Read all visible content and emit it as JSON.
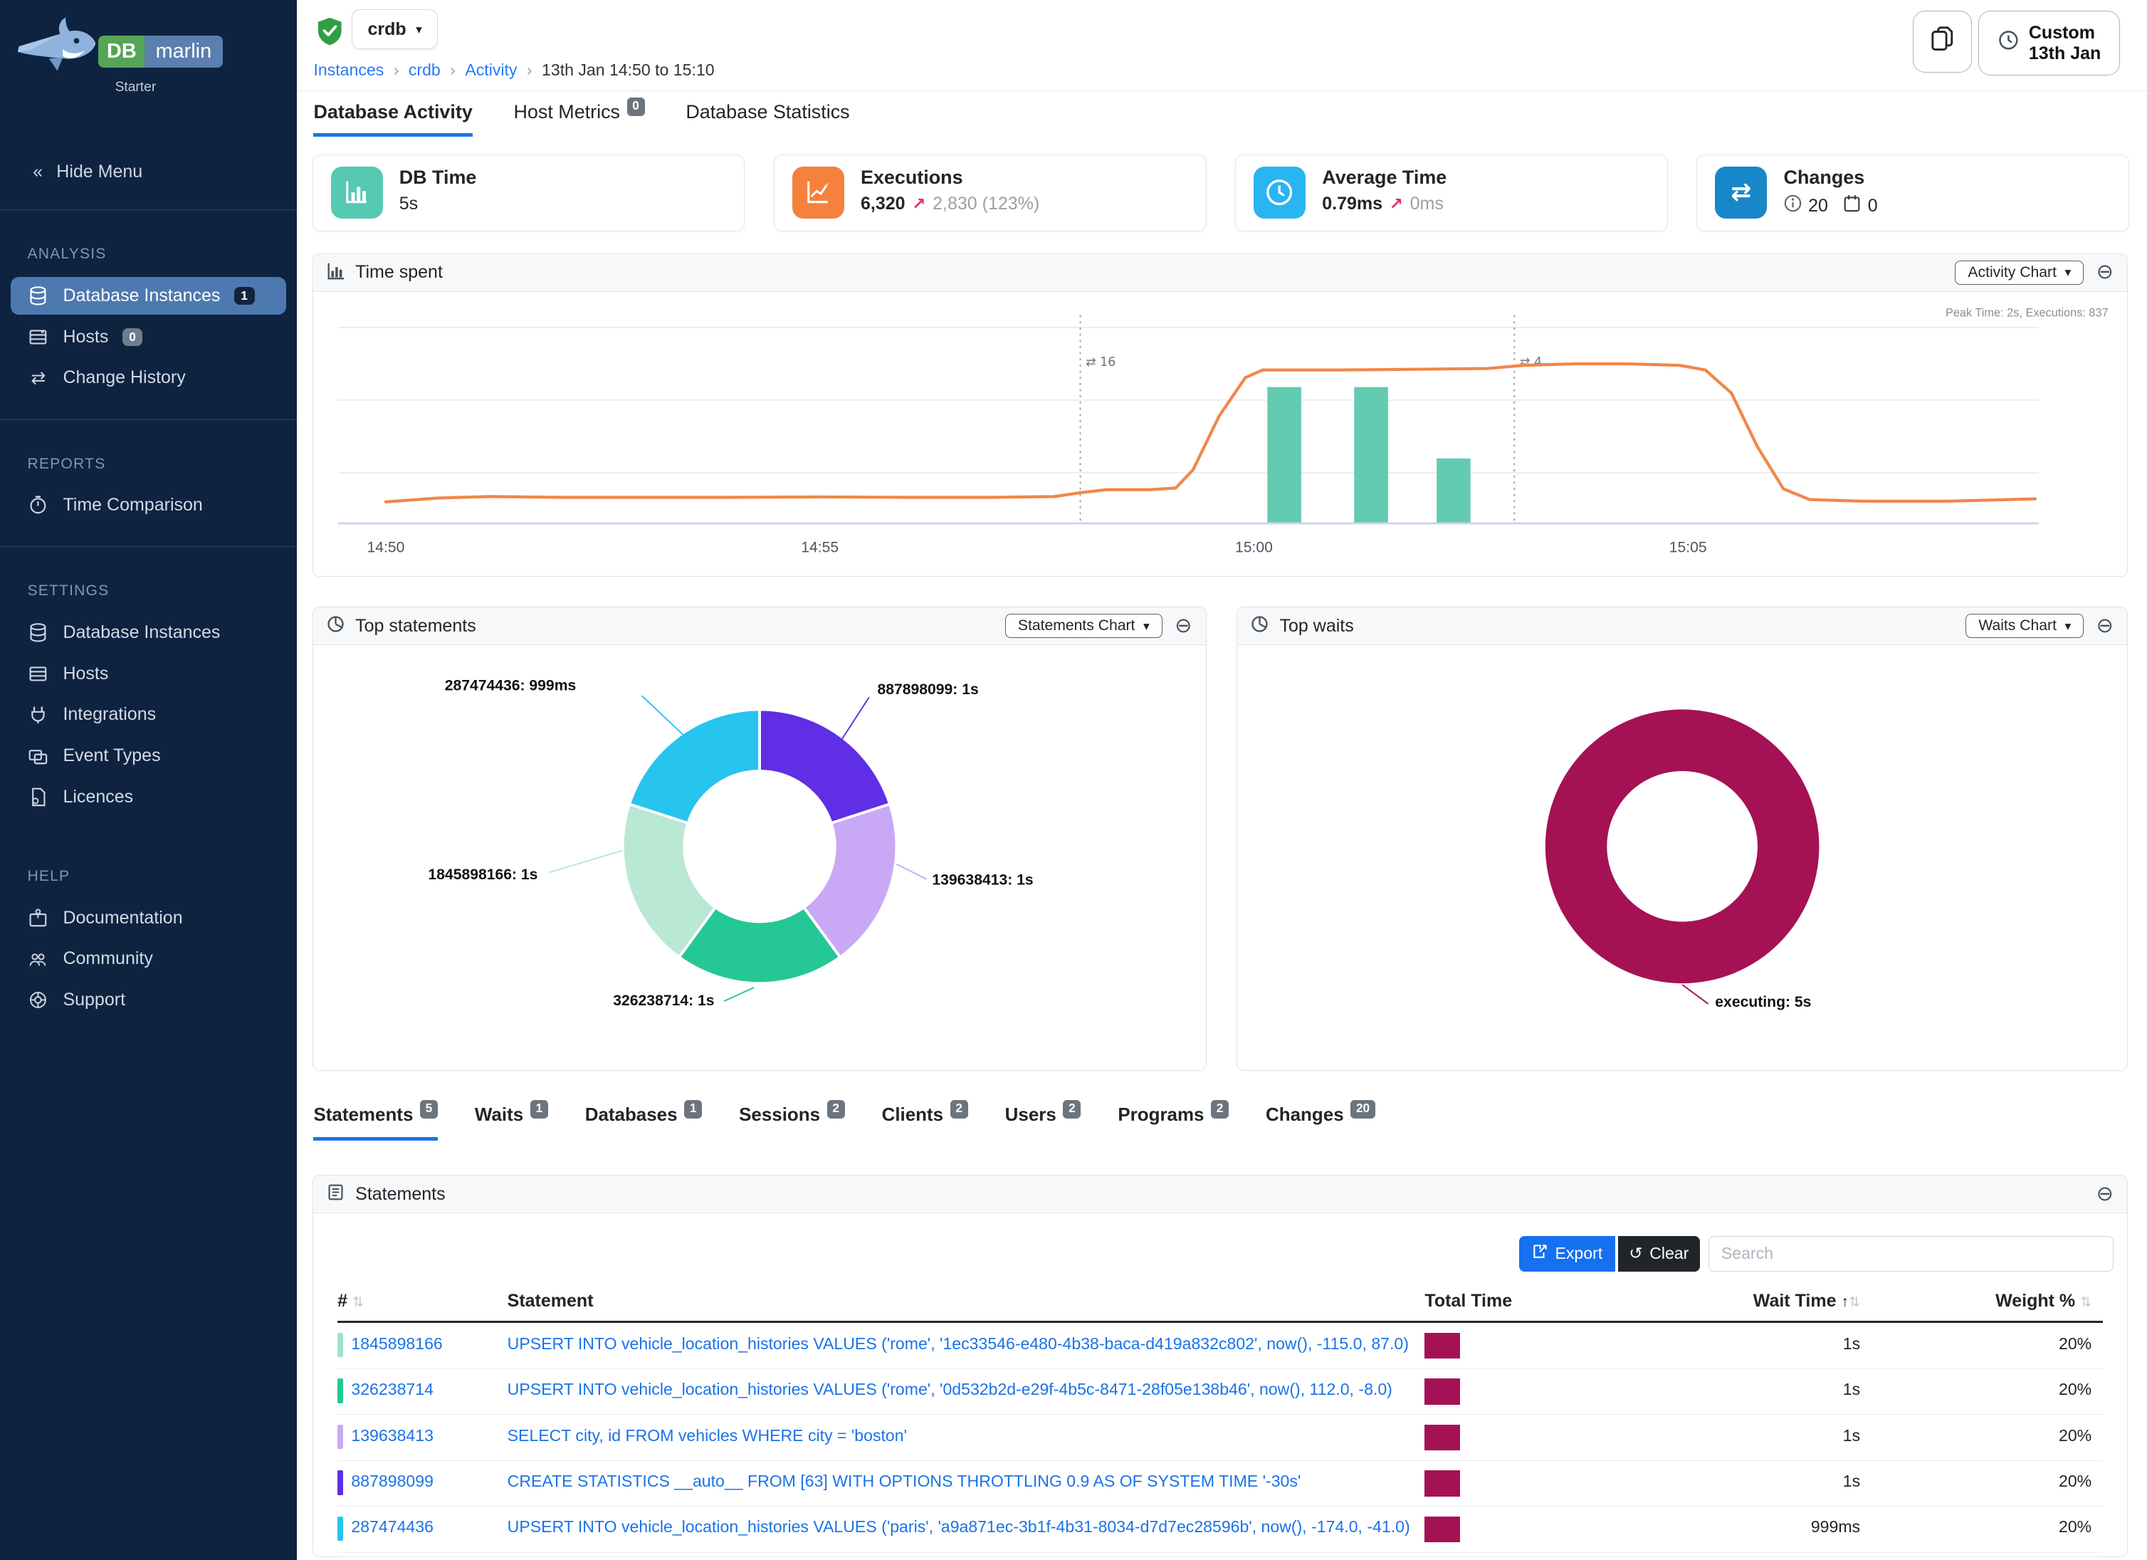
{
  "app": {
    "brand": {
      "db": "DB",
      "marlin": "marlin",
      "plan": "Starter"
    }
  },
  "sidebar": {
    "hide_menu": "Hide Menu",
    "sections": [
      {
        "title": "ANALYSIS",
        "items": [
          {
            "label": "Database Instances",
            "badge": "1"
          },
          {
            "label": "Hosts",
            "badge": "0"
          },
          {
            "label": "Change History"
          }
        ]
      },
      {
        "title": "REPORTS",
        "items": [
          {
            "label": "Time Comparison"
          }
        ]
      },
      {
        "title": "SETTINGS",
        "items": [
          {
            "label": "Database Instances"
          },
          {
            "label": "Hosts"
          },
          {
            "label": "Integrations"
          },
          {
            "label": "Event Types"
          },
          {
            "label": "Licences"
          }
        ]
      },
      {
        "title": "HELP",
        "items": [
          {
            "label": "Documentation"
          },
          {
            "label": "Community"
          },
          {
            "label": "Support"
          }
        ]
      }
    ]
  },
  "header": {
    "instance": "crdb",
    "breadcrumb": {
      "b0": "Instances",
      "b1": "crdb",
      "b2": "Activity",
      "b3": "13th Jan 14:50 to 15:10"
    },
    "time_button": {
      "line1": "Custom",
      "line2": "13th Jan"
    }
  },
  "page_tabs": [
    {
      "label": "Database Activity",
      "active": true
    },
    {
      "label": "Host Metrics",
      "badge": "0"
    },
    {
      "label": "Database Statistics"
    }
  ],
  "kpis": [
    {
      "title": "DB Time",
      "value": "5s",
      "color": "#55c9b4"
    },
    {
      "title": "Executions",
      "value": "6,320",
      "trend": "2,830 (123%)",
      "color": "#f5813c"
    },
    {
      "title": "Average Time",
      "value": "0.79ms",
      "trend": "0ms",
      "color": "#29b5f2"
    },
    {
      "title": "Changes",
      "info_count": "20",
      "event_count": "0",
      "color": "#1887c9"
    }
  ],
  "panels": {
    "time_spent": {
      "title": "Time spent",
      "button": "Activity Chart"
    },
    "top_statements": {
      "title": "Top statements",
      "button": "Statements Chart"
    },
    "top_waits": {
      "title": "Top waits",
      "button": "Waits Chart"
    },
    "statements": {
      "title": "Statements",
      "export": "Export",
      "clear": "Clear",
      "search_placeholder": "Search"
    }
  },
  "detail_tabs": [
    {
      "label": "Statements",
      "badge": "5",
      "active": true
    },
    {
      "label": "Waits",
      "badge": "1"
    },
    {
      "label": "Databases",
      "badge": "1"
    },
    {
      "label": "Sessions",
      "badge": "2"
    },
    {
      "label": "Clients",
      "badge": "2"
    },
    {
      "label": "Users",
      "badge": "2"
    },
    {
      "label": "Programs",
      "badge": "2"
    },
    {
      "label": "Changes",
      "badge": "20"
    }
  ],
  "table": {
    "columns": {
      "c0": "#",
      "c1": "Statement",
      "c2": "Total Time",
      "c3": "Wait Time",
      "c4": "Weight %"
    },
    "rows": [
      {
        "id": "1845898166",
        "color": "#9fe3c7",
        "statement": "UPSERT INTO vehicle_location_histories VALUES ('rome', '1ec33546-e480-4b38-baca-d419a832c802', now(), -115.0, 87.0)",
        "wait": "1s",
        "weight": "20%"
      },
      {
        "id": "326238714",
        "color": "#26c796",
        "statement": "UPSERT INTO vehicle_location_histories VALUES ('rome', '0d532b2d-e29f-4b5c-8471-28f05e138b46', now(), 112.0, -8.0)",
        "wait": "1s",
        "weight": "20%"
      },
      {
        "id": "139638413",
        "color": "#c9a9f5",
        "statement": "SELECT city, id FROM vehicles WHERE city = 'boston'",
        "wait": "1s",
        "weight": "20%"
      },
      {
        "id": "887898099",
        "color": "#5f2ee5",
        "statement": "CREATE STATISTICS __auto__ FROM [63] WITH OPTIONS THROTTLING 0.9 AS OF SYSTEM TIME '-30s'",
        "wait": "1s",
        "weight": "20%"
      },
      {
        "id": "287474436",
        "color": "#27c4ee",
        "statement": "UPSERT INTO vehicle_location_histories VALUES ('paris', 'a9a871ec-3b1f-4b31-8034-d7d7ec28596b', now(), -174.0, -41.0)",
        "wait": "999ms",
        "weight": "20%"
      }
    ]
  },
  "chart_data": [
    {
      "id": "time_spent",
      "type": "line+bar",
      "title": "Time spent",
      "note": "Peak Time: 2s, Executions: 837",
      "x_ticks": [
        {
          "minute": 0,
          "label": "14:50"
        },
        {
          "minute": 5,
          "label": "14:55"
        },
        {
          "minute": 10,
          "label": "15:00"
        },
        {
          "minute": 15,
          "label": "15:05"
        }
      ],
      "x_range_minutes": [
        0,
        19
      ],
      "y_max_seconds": 2.82,
      "line": {
        "name": "DB Time",
        "unit": "s",
        "color": "#f0874a",
        "points": [
          [
            0,
            0.28
          ],
          [
            0.6,
            0.33
          ],
          [
            1.2,
            0.35
          ],
          [
            2,
            0.34
          ],
          [
            3,
            0.34
          ],
          [
            4,
            0.34
          ],
          [
            5,
            0.345
          ],
          [
            6,
            0.34
          ],
          [
            7,
            0.34
          ],
          [
            7.7,
            0.35
          ],
          [
            8,
            0.4
          ],
          [
            8.3,
            0.44
          ],
          [
            8.8,
            0.44
          ],
          [
            9.1,
            0.46
          ],
          [
            9.3,
            0.7
          ],
          [
            9.6,
            1.4
          ],
          [
            9.9,
            1.9
          ],
          [
            10.1,
            2.0
          ],
          [
            11,
            2.0
          ],
          [
            12,
            2.01
          ],
          [
            12.7,
            2.02
          ],
          [
            13.1,
            2.06
          ],
          [
            13.7,
            2.08
          ],
          [
            14.3,
            2.08
          ],
          [
            14.9,
            2.06
          ],
          [
            15.2,
            2.0
          ],
          [
            15.5,
            1.7
          ],
          [
            15.8,
            1.0
          ],
          [
            16.1,
            0.45
          ],
          [
            16.4,
            0.31
          ],
          [
            17,
            0.29
          ],
          [
            18,
            0.29
          ],
          [
            19,
            0.32
          ]
        ]
      },
      "bars": {
        "name": "Executions",
        "color": "#63cbb2",
        "x_minutes": [
          10.35,
          11.35,
          12.3
        ],
        "bar_width_minutes": 0.39,
        "relative_heights": [
          0.63,
          0.63,
          0.3
        ]
      },
      "annotations": [
        {
          "minute": 8.0,
          "icon": "⇄",
          "label": "16"
        },
        {
          "minute": 13.0,
          "icon": "⇄",
          "label": "4"
        }
      ]
    },
    {
      "id": "top_statements",
      "type": "pie",
      "title": "Top statements",
      "slices": [
        {
          "label": "887898099: 1s",
          "value": 20,
          "color": "#5f2ee5"
        },
        {
          "label": "139638413: 1s",
          "value": 20,
          "color": "#c9a9f5"
        },
        {
          "label": "326238714: 1s",
          "value": 20,
          "color": "#26c796"
        },
        {
          "label": "1845898166: 1s",
          "value": 20,
          "color": "#b9e8d4"
        },
        {
          "label": "287474436: 999ms",
          "value": 20,
          "color": "#27c4ee"
        }
      ]
    },
    {
      "id": "top_waits",
      "type": "pie",
      "title": "Top waits",
      "slices": [
        {
          "label": "executing: 5s",
          "value": 100,
          "color": "#a51155"
        }
      ]
    }
  ]
}
